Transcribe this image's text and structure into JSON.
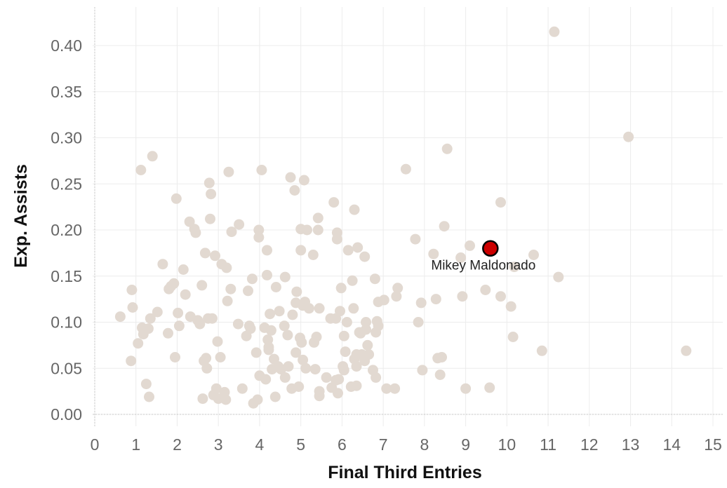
{
  "chart_data": {
    "type": "scatter",
    "xlabel": "Final Third Entries",
    "ylabel": "Exp. Assists",
    "xlim": [
      0,
      15
    ],
    "ylim": [
      0,
      0.42
    ],
    "x_ticks": [
      "0",
      "1",
      "2",
      "3",
      "4",
      "5",
      "6",
      "7",
      "8",
      "9",
      "10",
      "11",
      "12",
      "13",
      "14",
      "15"
    ],
    "y_ticks": [
      "0.00",
      "0.05",
      "0.10",
      "0.15",
      "0.20",
      "0.25",
      "0.30",
      "0.35",
      "0.40"
    ],
    "grid": true,
    "colors": {
      "others": "#e2d9d1",
      "highlight": "#cc0000",
      "highlight_stroke": "#000000"
    },
    "highlight": {
      "name": "Mikey Maldonado",
      "x": 9.6,
      "y": 0.18
    },
    "points": [
      [
        0.62,
        0.106
      ],
      [
        0.88,
        0.058
      ],
      [
        0.9,
        0.135
      ],
      [
        0.92,
        0.116
      ],
      [
        1.05,
        0.077
      ],
      [
        1.12,
        0.265
      ],
      [
        1.15,
        0.094
      ],
      [
        1.18,
        0.087
      ],
      [
        1.25,
        0.033
      ],
      [
        1.3,
        0.093
      ],
      [
        1.32,
        0.019
      ],
      [
        1.35,
        0.104
      ],
      [
        1.4,
        0.28
      ],
      [
        1.52,
        0.111
      ],
      [
        1.65,
        0.163
      ],
      [
        1.78,
        0.088
      ],
      [
        1.8,
        0.136
      ],
      [
        1.85,
        0.139
      ],
      [
        1.92,
        0.142
      ],
      [
        1.95,
        0.062
      ],
      [
        1.98,
        0.234
      ],
      [
        2.02,
        0.11
      ],
      [
        2.05,
        0.096
      ],
      [
        2.15,
        0.157
      ],
      [
        2.2,
        0.13
      ],
      [
        2.3,
        0.209
      ],
      [
        2.32,
        0.106
      ],
      [
        2.42,
        0.201
      ],
      [
        2.45,
        0.197
      ],
      [
        2.5,
        0.102
      ],
      [
        2.55,
        0.098
      ],
      [
        2.6,
        0.14
      ],
      [
        2.62,
        0.017
      ],
      [
        2.65,
        0.058
      ],
      [
        2.68,
        0.175
      ],
      [
        2.7,
        0.061
      ],
      [
        2.72,
        0.05
      ],
      [
        2.75,
        0.104
      ],
      [
        2.78,
        0.251
      ],
      [
        2.8,
        0.212
      ],
      [
        2.82,
        0.239
      ],
      [
        2.85,
        0.104
      ],
      [
        2.88,
        0.021
      ],
      [
        2.92,
        0.172
      ],
      [
        2.95,
        0.028
      ],
      [
        2.98,
        0.079
      ],
      [
        3.0,
        0.017
      ],
      [
        3.05,
        0.062
      ],
      [
        3.08,
        0.163
      ],
      [
        3.15,
        0.024
      ],
      [
        3.18,
        0.016
      ],
      [
        3.2,
        0.159
      ],
      [
        3.22,
        0.123
      ],
      [
        3.25,
        0.263
      ],
      [
        3.3,
        0.136
      ],
      [
        3.32,
        0.198
      ],
      [
        3.48,
        0.098
      ],
      [
        3.5,
        0.206
      ],
      [
        3.58,
        0.028
      ],
      [
        3.68,
        0.085
      ],
      [
        3.72,
        0.134
      ],
      [
        3.75,
        0.096
      ],
      [
        3.78,
        0.093
      ],
      [
        3.82,
        0.147
      ],
      [
        3.85,
        0.012
      ],
      [
        3.92,
        0.067
      ],
      [
        3.95,
        0.016
      ],
      [
        3.98,
        0.2
      ],
      [
        3.98,
        0.192
      ],
      [
        4.0,
        0.042
      ],
      [
        4.05,
        0.265
      ],
      [
        4.12,
        0.094
      ],
      [
        4.15,
        0.038
      ],
      [
        4.18,
        0.151
      ],
      [
        4.18,
        0.178
      ],
      [
        4.2,
        0.081
      ],
      [
        4.22,
        0.073
      ],
      [
        4.22,
        0.07
      ],
      [
        4.25,
        0.109
      ],
      [
        4.28,
        0.091
      ],
      [
        4.3,
        0.049
      ],
      [
        4.35,
        0.06
      ],
      [
        4.38,
        0.019
      ],
      [
        4.4,
        0.138
      ],
      [
        4.45,
        0.052
      ],
      [
        4.48,
        0.112
      ],
      [
        4.52,
        0.049
      ],
      [
        4.6,
        0.096
      ],
      [
        4.62,
        0.149
      ],
      [
        4.62,
        0.04
      ],
      [
        4.68,
        0.086
      ],
      [
        4.7,
        0.052
      ],
      [
        4.75,
        0.257
      ],
      [
        4.78,
        0.028
      ],
      [
        4.8,
        0.108
      ],
      [
        4.85,
        0.243
      ],
      [
        4.88,
        0.121
      ],
      [
        4.88,
        0.067
      ],
      [
        4.9,
        0.133
      ],
      [
        4.95,
        0.03
      ],
      [
        4.98,
        0.083
      ],
      [
        5.0,
        0.178
      ],
      [
        5.0,
        0.201
      ],
      [
        5.02,
        0.078
      ],
      [
        5.05,
        0.118
      ],
      [
        5.05,
        0.059
      ],
      [
        5.08,
        0.254
      ],
      [
        5.1,
        0.122
      ],
      [
        5.12,
        0.05
      ],
      [
        5.15,
        0.2
      ],
      [
        5.2,
        0.115
      ],
      [
        5.3,
        0.173
      ],
      [
        5.32,
        0.078
      ],
      [
        5.35,
        0.049
      ],
      [
        5.38,
        0.084
      ],
      [
        5.42,
        0.2
      ],
      [
        5.42,
        0.213
      ],
      [
        5.45,
        0.115
      ],
      [
        5.45,
        0.02
      ],
      [
        5.45,
        0.025
      ],
      [
        5.62,
        0.04
      ],
      [
        5.72,
        0.104
      ],
      [
        5.75,
        0.029
      ],
      [
        5.8,
        0.23
      ],
      [
        5.85,
        0.104
      ],
      [
        5.85,
        0.037
      ],
      [
        5.88,
        0.19
      ],
      [
        5.88,
        0.197
      ],
      [
        5.9,
        0.023
      ],
      [
        5.92,
        0.038
      ],
      [
        5.95,
        0.112
      ],
      [
        5.98,
        0.137
      ],
      [
        6.02,
        0.052
      ],
      [
        6.05,
        0.048
      ],
      [
        6.05,
        0.085
      ],
      [
        6.08,
        0.068
      ],
      [
        6.12,
        0.1
      ],
      [
        6.15,
        0.178
      ],
      [
        6.22,
        0.03
      ],
      [
        6.25,
        0.145
      ],
      [
        6.28,
        0.115
      ],
      [
        6.3,
        0.222
      ],
      [
        6.3,
        0.06
      ],
      [
        6.35,
        0.052
      ],
      [
        6.35,
        0.031
      ],
      [
        6.35,
        0.065
      ],
      [
        6.38,
        0.181
      ],
      [
        6.42,
        0.089
      ],
      [
        6.45,
        0.088
      ],
      [
        6.48,
        0.065
      ],
      [
        6.55,
        0.171
      ],
      [
        6.55,
        0.058
      ],
      [
        6.58,
        0.1
      ],
      [
        6.58,
        0.092
      ],
      [
        6.62,
        0.075
      ],
      [
        6.65,
        0.065
      ],
      [
        6.75,
        0.048
      ],
      [
        6.8,
        0.147
      ],
      [
        6.82,
        0.04
      ],
      [
        6.82,
        0.089
      ],
      [
        6.85,
        0.101
      ],
      [
        6.88,
        0.122
      ],
      [
        6.88,
        0.096
      ],
      [
        7.02,
        0.124
      ],
      [
        7.08,
        0.028
      ],
      [
        7.28,
        0.028
      ],
      [
        7.32,
        0.128
      ],
      [
        7.35,
        0.137
      ],
      [
        7.55,
        0.266
      ],
      [
        7.78,
        0.19
      ],
      [
        7.85,
        0.1
      ],
      [
        7.92,
        0.121
      ],
      [
        7.95,
        0.048
      ],
      [
        8.22,
        0.174
      ],
      [
        8.28,
        0.125
      ],
      [
        8.32,
        0.061
      ],
      [
        8.38,
        0.043
      ],
      [
        8.42,
        0.062
      ],
      [
        8.48,
        0.204
      ],
      [
        8.55,
        0.288
      ],
      [
        8.88,
        0.17
      ],
      [
        8.92,
        0.128
      ],
      [
        9.0,
        0.028
      ],
      [
        9.1,
        0.183
      ],
      [
        9.48,
        0.135
      ],
      [
        9.58,
        0.029
      ],
      [
        9.85,
        0.23
      ],
      [
        9.85,
        0.128
      ],
      [
        10.1,
        0.117
      ],
      [
        10.15,
        0.084
      ],
      [
        10.18,
        0.16
      ],
      [
        10.65,
        0.173
      ],
      [
        10.85,
        0.069
      ],
      [
        11.15,
        0.415
      ],
      [
        11.25,
        0.149
      ],
      [
        12.95,
        0.301
      ],
      [
        14.35,
        0.069
      ]
    ]
  }
}
